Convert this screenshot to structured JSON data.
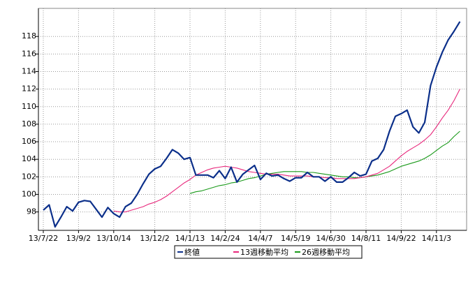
{
  "chart_data": {
    "type": "line",
    "categories": [
      "13/7/22",
      null,
      null,
      null,
      null,
      null,
      "13/9/2",
      null,
      null,
      null,
      null,
      null,
      "13/10/14",
      null,
      null,
      null,
      null,
      null,
      null,
      "13/12/2",
      null,
      null,
      null,
      null,
      null,
      "14/1/13",
      null,
      null,
      null,
      null,
      null,
      "14/2/24",
      null,
      null,
      null,
      null,
      null,
      "14/4/7",
      null,
      null,
      null,
      null,
      null,
      "14/5/19",
      null,
      null,
      null,
      null,
      null,
      "14/6/30",
      null,
      null,
      null,
      null,
      null,
      "14/8/11",
      null,
      null,
      null,
      null,
      null,
      "14/9/22",
      null,
      null,
      null,
      null,
      null,
      "14/11/3",
      null,
      null,
      null,
      null
    ],
    "series": [
      {
        "name": "終値",
        "color": "#0b2f8a",
        "values": [
          98.2,
          98.8,
          96.3,
          97.4,
          98.6,
          98.1,
          99.1,
          99.3,
          99.2,
          98.3,
          97.4,
          98.5,
          97.8,
          97.4,
          98.6,
          99.0,
          100.0,
          101.2,
          102.3,
          102.9,
          103.2,
          104.1,
          105.1,
          104.7,
          104.0,
          104.2,
          102.2,
          102.2,
          102.2,
          101.9,
          102.7,
          101.8,
          103.1,
          101.4,
          102.3,
          102.8,
          103.3,
          101.7,
          102.4,
          102.1,
          102.2,
          101.8,
          101.5,
          101.9,
          101.9,
          102.5,
          102.0,
          102.0,
          101.5,
          102.0,
          101.4,
          101.4,
          101.9,
          102.5,
          102.1,
          102.3,
          103.8,
          104.1,
          105.1,
          107.2,
          108.9,
          109.2,
          109.6,
          107.7,
          107.0,
          108.2,
          112.4,
          114.5,
          116.2,
          117.6,
          118.6,
          119.7
        ]
      },
      {
        "name": "13週移動平均",
        "color": "#e8287c",
        "values": [
          null,
          null,
          null,
          null,
          null,
          null,
          null,
          null,
          null,
          null,
          null,
          null,
          98.1,
          98.0,
          98.0,
          98.2,
          98.4,
          98.6,
          98.9,
          99.1,
          99.4,
          99.8,
          100.3,
          100.8,
          101.3,
          101.7,
          102.2,
          102.5,
          102.8,
          103.0,
          103.1,
          103.2,
          103.1,
          103.0,
          102.8,
          102.6,
          102.5,
          102.4,
          102.3,
          102.3,
          102.3,
          102.2,
          102.1,
          102.1,
          102.1,
          102.1,
          102.0,
          102.0,
          101.9,
          101.9,
          101.8,
          101.8,
          101.8,
          101.8,
          101.9,
          102.0,
          102.2,
          102.4,
          102.8,
          103.2,
          103.8,
          104.4,
          104.9,
          105.3,
          105.7,
          106.2,
          106.8,
          107.7,
          108.7,
          109.6,
          110.7,
          112.0
        ]
      },
      {
        "name": "26週移動平均",
        "color": "#1a9a1a",
        "values": [
          null,
          null,
          null,
          null,
          null,
          null,
          null,
          null,
          null,
          null,
          null,
          null,
          null,
          null,
          null,
          null,
          null,
          null,
          null,
          null,
          null,
          null,
          null,
          null,
          null,
          100.1,
          100.3,
          100.4,
          100.6,
          100.8,
          101.0,
          101.1,
          101.3,
          101.4,
          101.6,
          101.8,
          101.9,
          102.1,
          102.3,
          102.4,
          102.5,
          102.6,
          102.6,
          102.6,
          102.6,
          102.5,
          102.5,
          102.4,
          102.3,
          102.2,
          102.1,
          102.0,
          102.0,
          101.9,
          101.9,
          102.0,
          102.1,
          102.2,
          102.4,
          102.6,
          102.9,
          103.2,
          103.4,
          103.6,
          103.8,
          104.1,
          104.5,
          105.0,
          105.5,
          105.9,
          106.6,
          107.2
        ]
      }
    ],
    "ylim": [
      95.9,
      121.2
    ],
    "yticks": [
      98,
      100,
      102,
      104,
      106,
      108,
      110,
      112,
      114,
      116,
      118
    ],
    "grid": true
  }
}
